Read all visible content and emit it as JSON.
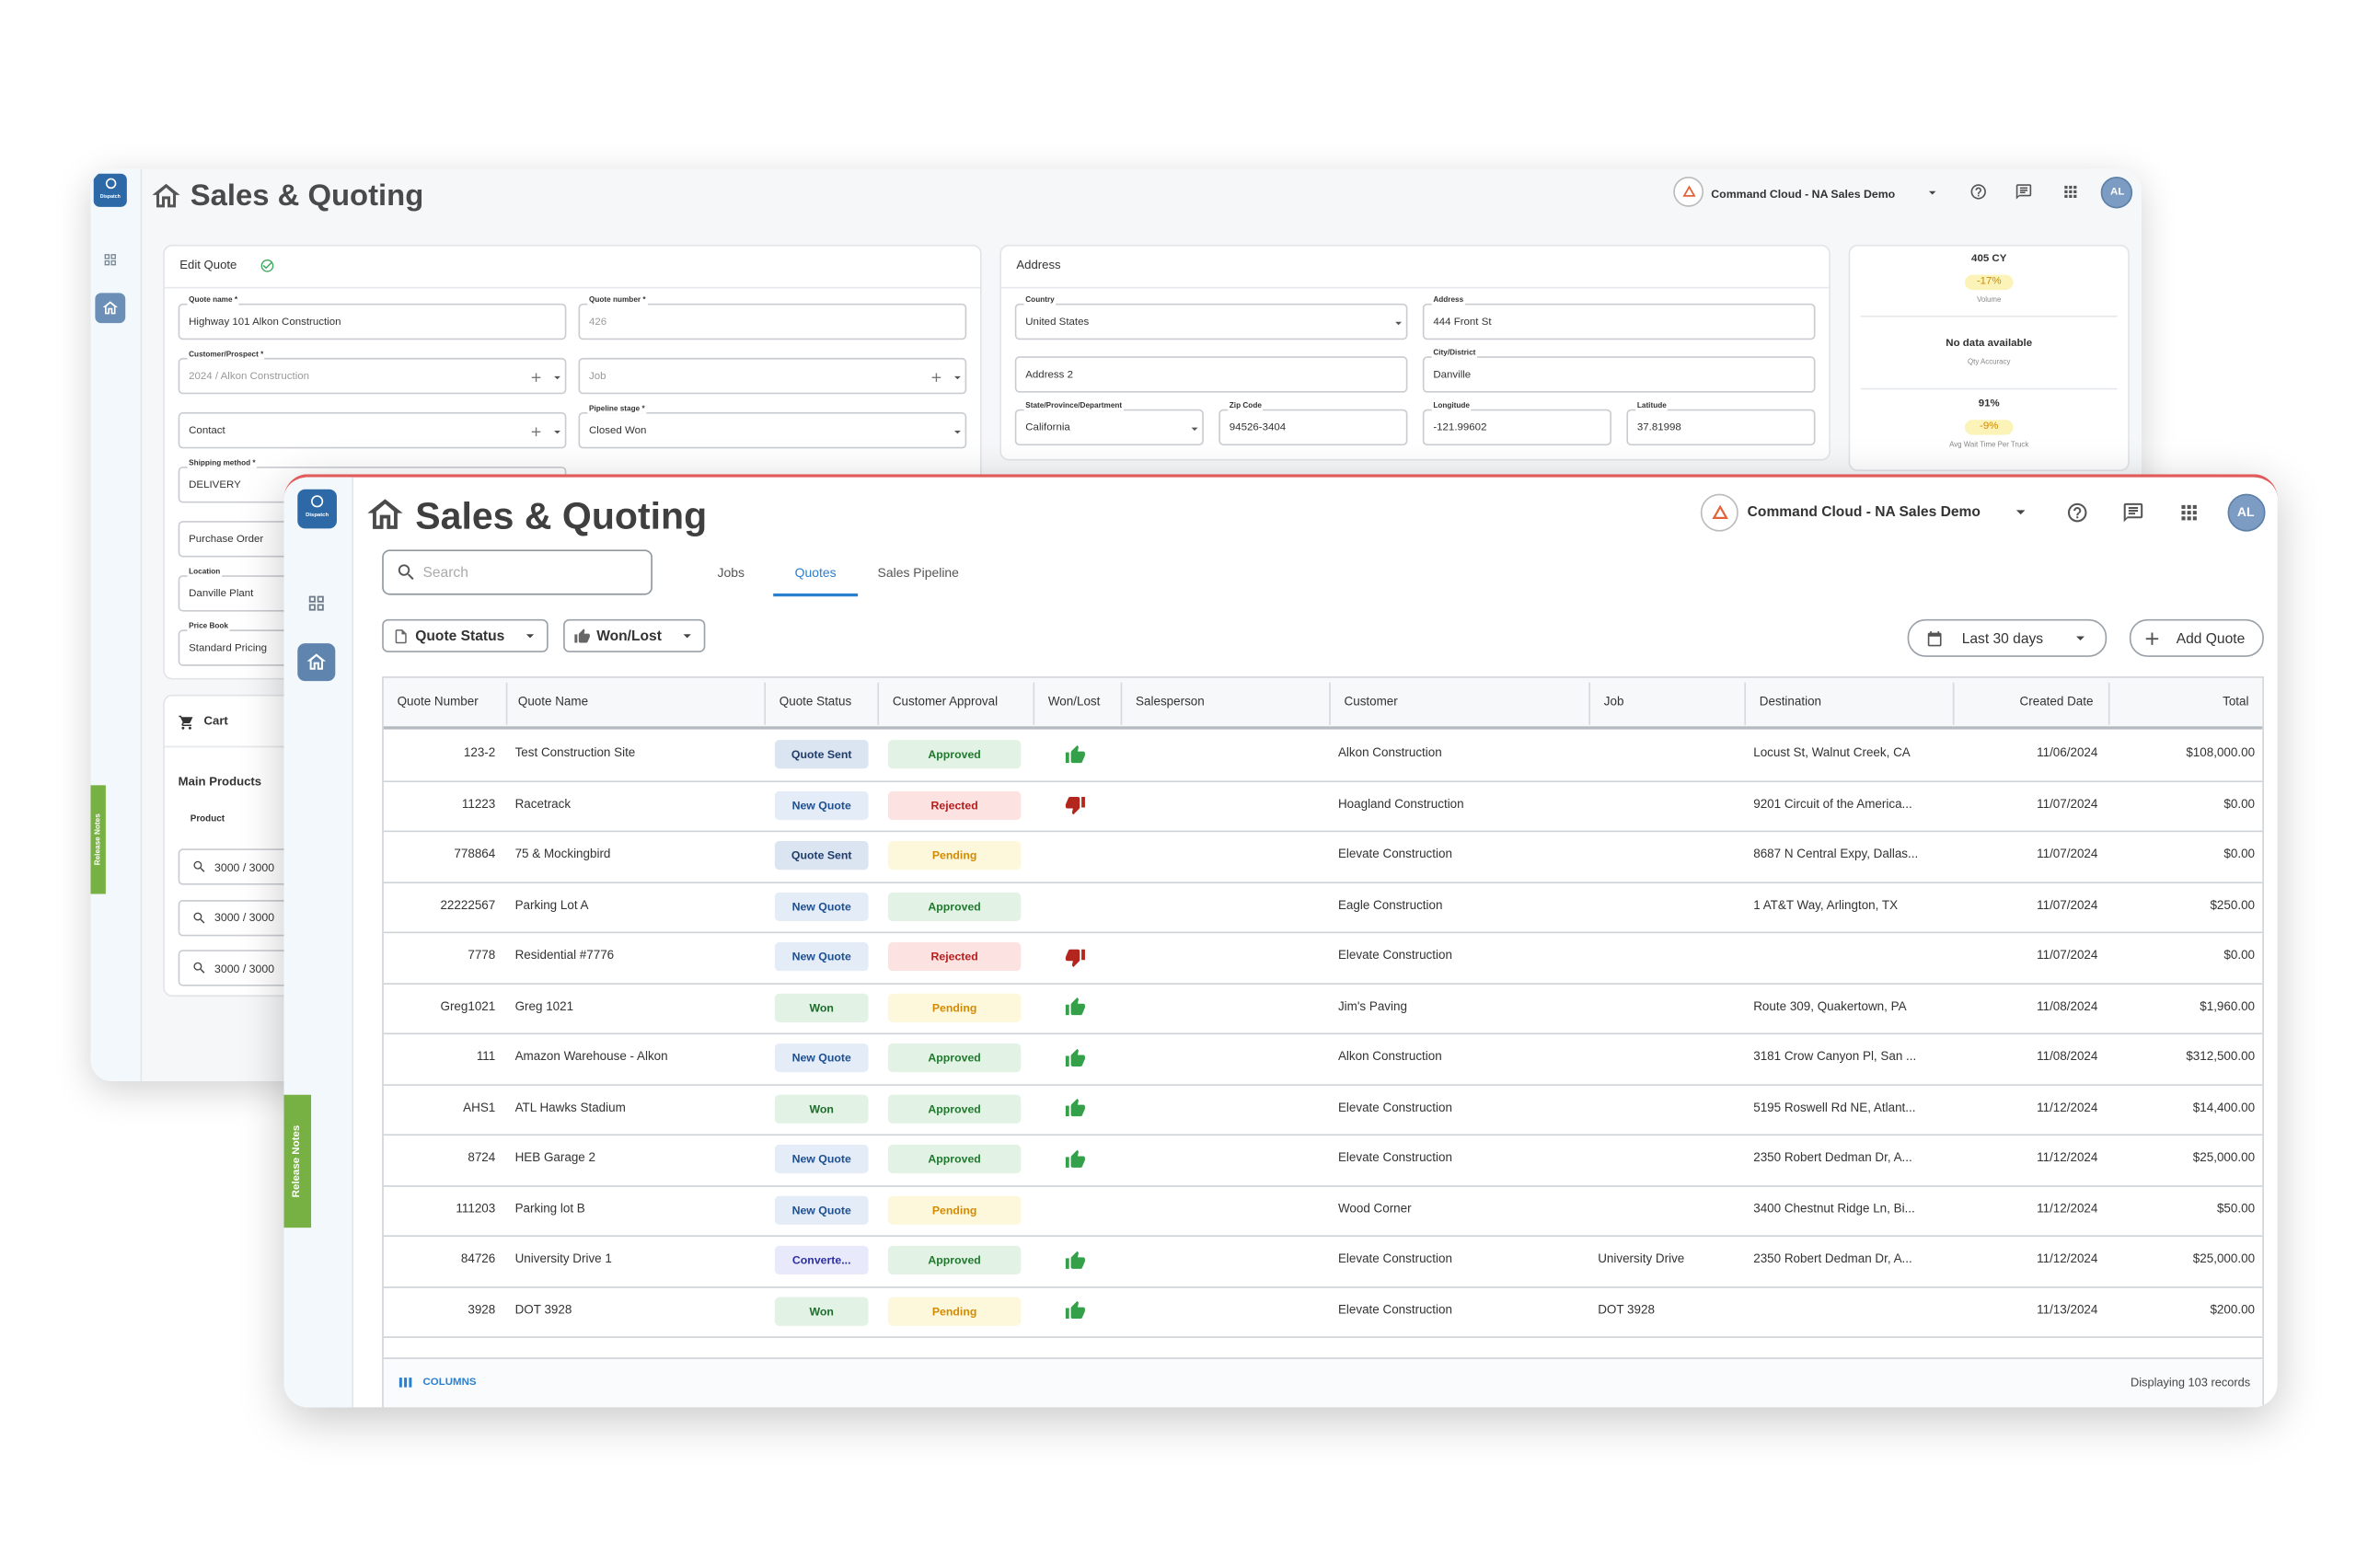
{
  "back": {
    "app_badge": "Dispatch",
    "title": "Sales & Quoting",
    "org": "Command Cloud - NA Sales Demo",
    "avatar": "AL",
    "release_notes": "Release Notes",
    "edit_quote": {
      "heading": "Edit Quote",
      "fields": [
        {
          "label": "Quote name *",
          "value": "Highway 101 Alkon Construction"
        },
        {
          "label": "Quote number *",
          "value": "426",
          "muted": true
        },
        {
          "label": "Customer/Prospect *",
          "value": "2024 / Alkon Construction",
          "muted": true,
          "add": true,
          "dropdown": true
        },
        {
          "value": "Job",
          "muted": true,
          "add": true,
          "dropdown": true
        },
        {
          "value": "Contact",
          "add": true,
          "dropdown": true
        },
        {
          "label": "Pipeline stage *",
          "value": "Closed Won",
          "dropdown": true
        },
        {
          "label": "Shipping method *",
          "value": "DELIVERY"
        },
        {
          "value": "Purchase Order"
        },
        {
          "label": "Location",
          "value": "Danville Plant"
        },
        {
          "label": "Price Book",
          "value": "Standard Pricing"
        }
      ]
    },
    "address": {
      "heading": "Address",
      "fields": [
        {
          "label": "Country",
          "value": "United States",
          "dropdown": true
        },
        {
          "label": "Address",
          "value": "444 Front St"
        },
        {
          "value": "Address 2"
        },
        {
          "label": "City/District",
          "value": "Danville"
        },
        {
          "label": "State/Province/Department",
          "value": "California",
          "dropdown": true
        },
        {
          "label": "Zip Code",
          "value": "94526-3404"
        },
        {
          "label": "Longitude",
          "value": "-121.99602"
        },
        {
          "label": "Latitude",
          "value": "37.81998"
        }
      ]
    },
    "stats": [
      {
        "value": "405 CY",
        "change": "-17%",
        "label": "Volume"
      },
      {
        "value": "No data available",
        "label": "Qty Accuracy"
      },
      {
        "value": "91%",
        "change": "-9%",
        "label": "Avg Wait Time Per Truck"
      }
    ],
    "cart": {
      "heading": "Cart",
      "section": "Main Products",
      "column": "Product",
      "items": [
        "3000 / 3000",
        "3000 / 3000",
        "3000 / 3000"
      ]
    }
  },
  "front": {
    "app_badge": "Dispatch",
    "title": "Sales & Quoting",
    "org": "Command Cloud - NA Sales Demo",
    "avatar": "AL",
    "release_notes": "Release Notes",
    "search_placeholder": "Search",
    "tabs": [
      "Jobs",
      "Quotes",
      "Sales Pipeline"
    ],
    "active_tab": 1,
    "filters": [
      "Quote Status",
      "Won/Lost"
    ],
    "date_range": "Last 30 days",
    "add_button": "Add Quote",
    "table": {
      "columns": [
        "Quote Number",
        "Quote Name",
        "Quote Status",
        "Customer Approval",
        "Won/Lost",
        "Salesperson",
        "Customer",
        "Job",
        "Destination",
        "Created Date",
        "Total"
      ],
      "rows": [
        [
          "123-2",
          "Test Construction Site",
          {
            "text": "Quote Sent",
            "color": "#1f3d6b",
            "background": "#dbe4f1"
          },
          {
            "text": "Approved",
            "color": "#1f7a2e",
            "background": "#e2f3e5"
          },
          "up",
          null,
          "Alkon Construction",
          null,
          "Locust St, Walnut Creek, CA",
          "11/06/2024",
          "$108,000.00"
        ],
        [
          "11223",
          "Racetrack",
          {
            "text": "New Quote",
            "color": "#1d4f91",
            "background": "#e4ecf7"
          },
          {
            "text": "Rejected",
            "color": "#b71c1c",
            "background": "#fde2e2"
          },
          "down",
          null,
          "Hoagland Construction",
          null,
          "9201 Circuit of the America...",
          "11/07/2024",
          "$0.00"
        ],
        [
          "778864",
          "75 & Mockingbird",
          {
            "text": "Quote Sent",
            "color": "#1f3d6b",
            "background": "#dbe4f1"
          },
          {
            "text": "Pending",
            "color": "#d48a00",
            "background": "#fdf8dc"
          },
          null,
          null,
          "Elevate Construction",
          null,
          "8687 N Central Expy, Dallas...",
          "11/07/2024",
          "$0.00"
        ],
        [
          "22222567",
          "Parking Lot A",
          {
            "text": "New Quote",
            "color": "#1d4f91",
            "background": "#e4ecf7"
          },
          {
            "text": "Approved",
            "color": "#1f7a2e",
            "background": "#e2f3e5"
          },
          null,
          null,
          "Eagle Construction",
          null,
          "1 AT&T Way, Arlington, TX",
          "11/07/2024",
          "$250.00"
        ],
        [
          "7778",
          "Residential #7776",
          {
            "text": "New Quote",
            "color": "#1d4f91",
            "background": "#e4ecf7"
          },
          {
            "text": "Rejected",
            "color": "#b71c1c",
            "background": "#fde2e2"
          },
          "down",
          null,
          "Elevate Construction",
          null,
          null,
          "11/07/2024",
          "$0.00"
        ],
        [
          "Greg1021",
          "Greg 1021",
          {
            "text": "Won",
            "color": "#1e6b2c",
            "background": "#e2f3e5"
          },
          {
            "text": "Pending",
            "color": "#d48a00",
            "background": "#fdf8dc"
          },
          "up",
          null,
          "Jim's Paving",
          null,
          "Route 309, Quakertown, PA",
          "11/08/2024",
          "$1,960.00"
        ],
        [
          "111",
          "Amazon Warehouse - Alkon",
          {
            "text": "New Quote",
            "color": "#1d4f91",
            "background": "#e4ecf7"
          },
          {
            "text": "Approved",
            "color": "#1f7a2e",
            "background": "#e2f3e5"
          },
          "up",
          null,
          "Alkon Construction",
          null,
          "3181 Crow Canyon Pl, San ...",
          "11/08/2024",
          "$312,500.00"
        ],
        [
          "AHS1",
          "ATL Hawks Stadium",
          {
            "text": "Won",
            "color": "#1e6b2c",
            "background": "#e2f3e5"
          },
          {
            "text": "Approved",
            "color": "#1f7a2e",
            "background": "#e2f3e5"
          },
          "up",
          null,
          "Elevate Construction",
          null,
          "5195 Roswell Rd NE, Atlant...",
          "11/12/2024",
          "$14,400.00"
        ],
        [
          "8724",
          "HEB Garage 2",
          {
            "text": "New Quote",
            "color": "#1d4f91",
            "background": "#e4ecf7"
          },
          {
            "text": "Approved",
            "color": "#1f7a2e",
            "background": "#e2f3e5"
          },
          "up",
          null,
          "Elevate Construction",
          null,
          "2350 Robert Dedman Dr, A...",
          "11/12/2024",
          "$25,000.00"
        ],
        [
          "111203",
          "Parking lot B",
          {
            "text": "New Quote",
            "color": "#1d4f91",
            "background": "#e4ecf7"
          },
          {
            "text": "Pending",
            "color": "#d48a00",
            "background": "#fdf8dc"
          },
          null,
          null,
          "Wood Corner",
          null,
          "3400 Chestnut Ridge Ln, Bi...",
          "11/12/2024",
          "$50.00"
        ],
        [
          "84726",
          "University Drive 1",
          {
            "text": "Converte...",
            "color": "#2c2fa0",
            "background": "#e8e9fb"
          },
          {
            "text": "Approved",
            "color": "#1f7a2e",
            "background": "#e2f3e5"
          },
          "up",
          null,
          "Elevate Construction",
          "University Drive",
          "2350 Robert Dedman Dr, A...",
          "11/12/2024",
          "$25,000.00"
        ],
        [
          "3928",
          "DOT 3928",
          {
            "text": "Won",
            "color": "#1e6b2c",
            "background": "#e2f3e5"
          },
          {
            "text": "Pending",
            "color": "#d48a00",
            "background": "#fdf8dc"
          },
          "up",
          null,
          "Elevate Construction",
          "DOT 3928",
          null,
          "11/13/2024",
          "$200.00"
        ]
      ]
    },
    "columns_button": "COLUMNS",
    "record_count": "Displaying 103 records"
  }
}
